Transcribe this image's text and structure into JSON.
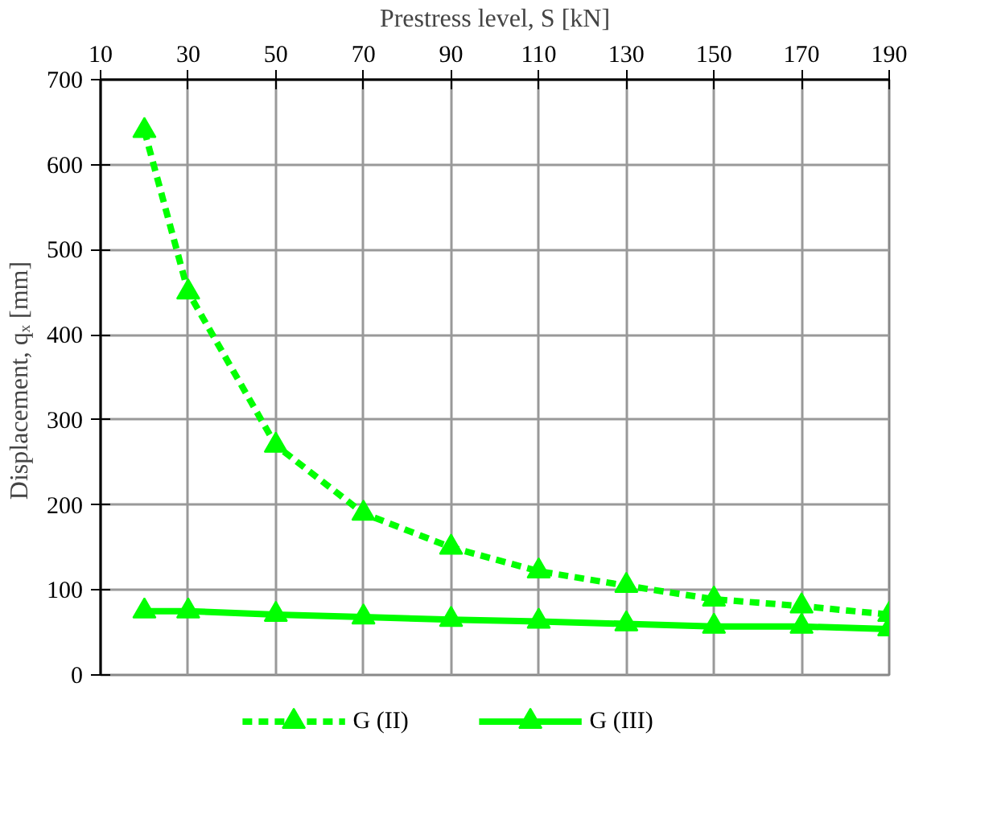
{
  "chart_data": {
    "type": "line",
    "xlabel": "Prestress level, S [kN]",
    "ylabel": "Displacement,  qₓ [mm]",
    "x": [
      20,
      30,
      50,
      70,
      90,
      110,
      130,
      150,
      170,
      190
    ],
    "xlim": [
      10,
      190
    ],
    "xticks": [
      10,
      30,
      50,
      70,
      90,
      110,
      130,
      150,
      170,
      190
    ],
    "ylim": [
      0,
      700
    ],
    "yticks": [
      0,
      100,
      200,
      300,
      400,
      500,
      600,
      700
    ],
    "grid": true,
    "legend": "bottom",
    "marker": "triangle",
    "series": [
      {
        "name": "G (II)",
        "color": "#00ff00",
        "line_style": "dashed",
        "values": [
          640,
          450,
          270,
          190,
          150,
          122,
          105,
          89,
          81,
          71
        ]
      },
      {
        "name": "G (III)",
        "color": "#00ff00",
        "line_style": "solid",
        "values": [
          75,
          75,
          71,
          68,
          65,
          63,
          60,
          57,
          57,
          54
        ]
      }
    ]
  }
}
